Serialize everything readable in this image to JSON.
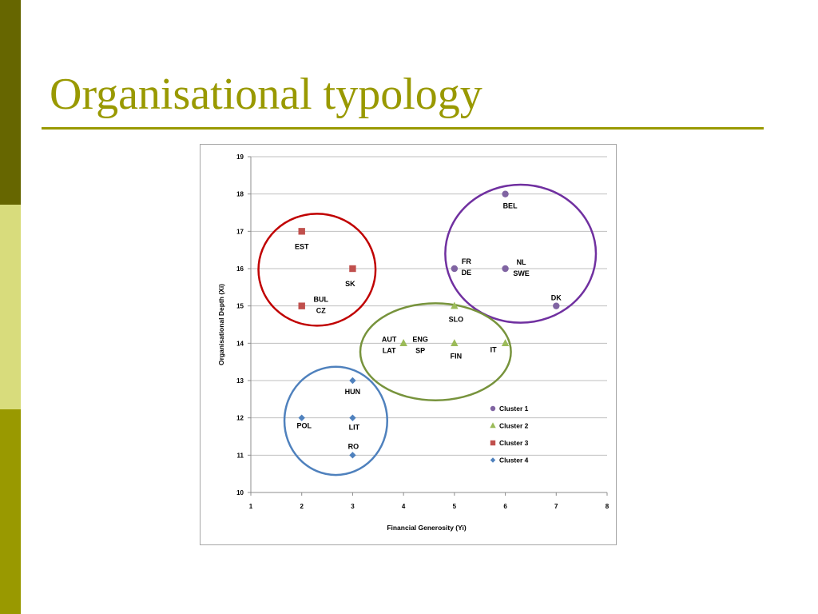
{
  "slide": {
    "title": "Organisational typology",
    "colors": {
      "accent": "#999900",
      "sidebar_dark": "#666600",
      "sidebar_light": "#D8DC7C"
    }
  },
  "chart_data": {
    "type": "scatter",
    "xlabel": "Financial Generosity (Yi)",
    "ylabel": "Organisational Depth (Xi)",
    "xlim": [
      1,
      8
    ],
    "ylim": [
      10,
      19
    ],
    "xticks": [
      1,
      2,
      3,
      4,
      5,
      6,
      7,
      8
    ],
    "yticks": [
      10,
      11,
      12,
      13,
      14,
      15,
      16,
      17,
      18,
      19
    ],
    "grid": "horizontal",
    "legend_position": "lower-right",
    "series": [
      {
        "name": "Cluster 1",
        "color": "#8064A2",
        "marker": "circle",
        "points": [
          {
            "x": 6,
            "y": 18,
            "label": [
              "BEL"
            ]
          },
          {
            "x": 5,
            "y": 16,
            "label": [
              "FR",
              "DE"
            ]
          },
          {
            "x": 6,
            "y": 16,
            "label": [
              "NL",
              "SWE"
            ]
          },
          {
            "x": 7,
            "y": 15,
            "label": [
              "DK"
            ]
          }
        ]
      },
      {
        "name": "Cluster 2",
        "color": "#9BBB59",
        "marker": "triangle",
        "points": [
          {
            "x": 5,
            "y": 15,
            "label": [
              "SLO"
            ]
          },
          {
            "x": 4,
            "y": 14,
            "label": [
              "AUT",
              "LAT"
            ]
          },
          {
            "x": 4,
            "y": 14,
            "label": [
              "ENG",
              "SP"
            ]
          },
          {
            "x": 5,
            "y": 14,
            "label": [
              "FIN"
            ]
          },
          {
            "x": 6,
            "y": 14,
            "label": [
              "IT"
            ]
          }
        ]
      },
      {
        "name": "Cluster 3",
        "color": "#C0504D",
        "marker": "square",
        "points": [
          {
            "x": 2,
            "y": 17,
            "label": [
              "EST"
            ]
          },
          {
            "x": 3,
            "y": 16,
            "label": [
              "SK"
            ]
          },
          {
            "x": 2,
            "y": 15,
            "label": [
              "BUL",
              "CZ"
            ]
          }
        ]
      },
      {
        "name": "Cluster 4",
        "color": "#4F81BD",
        "marker": "diamond",
        "points": [
          {
            "x": 3,
            "y": 13,
            "label": [
              "HUN"
            ]
          },
          {
            "x": 2,
            "y": 12,
            "label": [
              "POL"
            ]
          },
          {
            "x": 3,
            "y": 12,
            "label": [
              "LIT"
            ]
          },
          {
            "x": 3,
            "y": 11,
            "label": [
              "RO"
            ]
          }
        ]
      }
    ],
    "cluster_ellipses": [
      {
        "series": "Cluster 1",
        "color": "#7030A0",
        "cx": 6.3,
        "cy": 16.4,
        "rx": 1.48,
        "ry": 1.85
      },
      {
        "series": "Cluster 2",
        "color": "#77933C",
        "cx": 4.63,
        "cy": 13.77,
        "rx": 1.48,
        "ry": 1.3
      },
      {
        "series": "Cluster 3",
        "color": "#C00000",
        "cx": 2.3,
        "cy": 15.97,
        "rx": 1.15,
        "ry": 1.5
      },
      {
        "series": "Cluster 4",
        "color": "#4F81BD",
        "cx": 2.67,
        "cy": 11.92,
        "rx": 1.01,
        "ry": 1.45
      }
    ]
  }
}
